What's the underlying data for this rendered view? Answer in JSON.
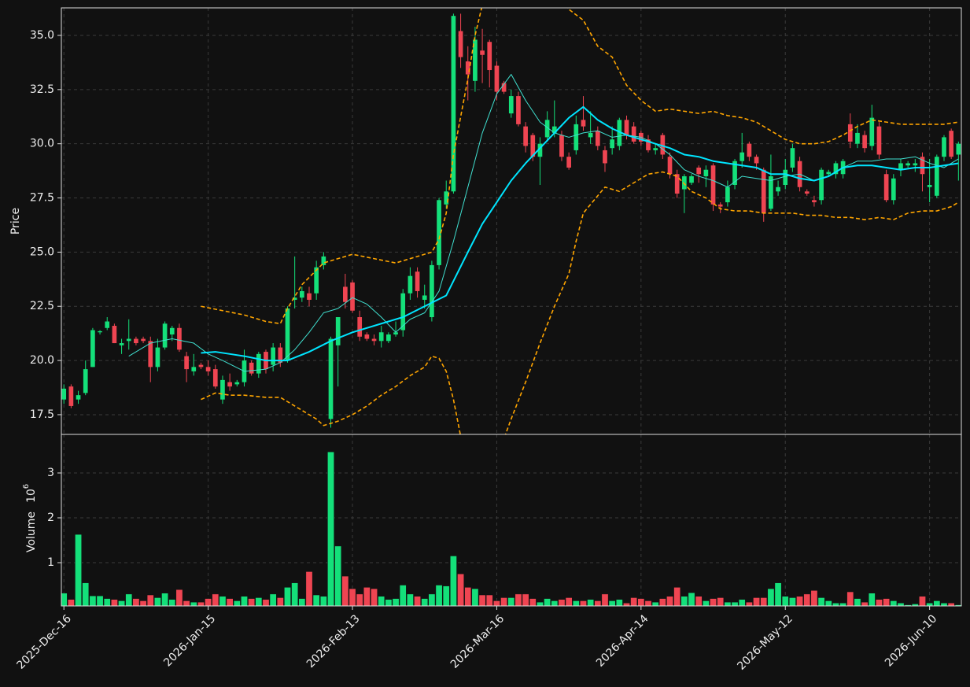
{
  "chart_data": {
    "type": "candlestick",
    "ylabel": "Price",
    "volume_label": "Volume",
    "volume_scale": {
      "base": "10",
      "exponent": "6"
    },
    "up_color": "#14e07a",
    "down_color": "#ef4552",
    "grid": true,
    "categories": [
      "2025-Dec-16",
      null,
      null,
      null,
      null,
      null,
      null,
      null,
      null,
      null,
      null,
      null,
      null,
      null,
      null,
      null,
      null,
      null,
      null,
      null,
      "2026-Jan-15",
      null,
      null,
      null,
      null,
      null,
      null,
      null,
      null,
      null,
      null,
      null,
      null,
      null,
      null,
      null,
      null,
      null,
      null,
      null,
      "2026-Feb-13",
      null,
      null,
      null,
      null,
      null,
      null,
      null,
      null,
      null,
      null,
      null,
      null,
      null,
      null,
      null,
      null,
      null,
      null,
      null,
      "2026-Mar-16",
      null,
      null,
      null,
      null,
      null,
      null,
      null,
      null,
      null,
      null,
      null,
      null,
      null,
      null,
      null,
      null,
      null,
      null,
      null,
      "2026-Apr-14",
      null,
      null,
      null,
      null,
      null,
      null,
      null,
      null,
      null,
      null,
      null,
      null,
      null,
      null,
      null,
      null,
      null,
      null,
      null,
      "2026-May-12",
      null,
      null,
      null,
      null,
      null,
      null,
      null,
      null,
      null,
      null,
      null,
      null,
      null,
      null,
      null,
      null,
      null,
      null,
      null,
      "2026-Jun-10",
      null,
      null,
      null,
      null
    ],
    "xlim": [
      -0.35,
      124.4
    ],
    "open": [
      18.2,
      18.8,
      18.2,
      18.5,
      19.7,
      21.3,
      21.5,
      21.6,
      20.7,
      20.9,
      21.0,
      21.0,
      20.9,
      19.7,
      20.6,
      21.2,
      21.5,
      20.2,
      19.5,
      19.8,
      19.7,
      19.6,
      18.2,
      19.0,
      18.9,
      19.0,
      19.9,
      19.4,
      20.4,
      19.8,
      20.6,
      20.0,
      22.8,
      22.9,
      23.1,
      23.1,
      24.4,
      17.3,
      20.7,
      23.4,
      23.6,
      22.0,
      21.2,
      21.0,
      20.9,
      20.9,
      21.2,
      21.4,
      23.1,
      24.1,
      22.8,
      22.0,
      24.4,
      27.2,
      27.8,
      35.2,
      33.8,
      32.9,
      34.3,
      34.7,
      33.6,
      32.8,
      31.4,
      32.2,
      30.8,
      30.4,
      29.4,
      30.3,
      30.5,
      30.4,
      29.4,
      29.7,
      31.1,
      30.3,
      30.6,
      29.7,
      29.8,
      29.9,
      31.1,
      30.8,
      30.5,
      30.2,
      29.7,
      30.4,
      29.4,
      28.6,
      27.9,
      28.2,
      28.9,
      28.5,
      29.0,
      27.2,
      27.3,
      28.1,
      29.2,
      30.0,
      29.4,
      28.8,
      27.0,
      27.8,
      28.1,
      28.9,
      29.2,
      27.8,
      27.4,
      27.4,
      28.6,
      28.6,
      28.6,
      30.9,
      30.0,
      30.4,
      29.9,
      30.8,
      28.6,
      27.4,
      28.8,
      29.0,
      29.0,
      29.4,
      28.0,
      27.6,
      29.4,
      30.6,
      29.5
    ],
    "high": [
      18.9,
      18.9,
      18.6,
      20.0,
      21.5,
      21.4,
      22.0,
      21.7,
      21.0,
      21.9,
      21.1,
      21.1,
      21.1,
      21.0,
      21.8,
      21.6,
      21.7,
      20.4,
      20.3,
      19.9,
      20.0,
      19.8,
      19.3,
      19.4,
      19.1,
      20.5,
      20.0,
      20.4,
      20.5,
      20.8,
      20.8,
      22.5,
      24.8,
      23.4,
      23.4,
      24.6,
      25.0,
      21.1,
      22.0,
      24.0,
      23.7,
      22.3,
      21.3,
      21.2,
      21.6,
      21.3,
      21.8,
      23.3,
      24.3,
      24.3,
      23.5,
      24.6,
      27.5,
      28.3,
      36.0,
      36.0,
      34.5,
      35.4,
      35.3,
      34.8,
      33.8,
      32.9,
      32.5,
      32.4,
      31.0,
      30.5,
      30.3,
      31.5,
      32.0,
      30.6,
      29.6,
      31.3,
      32.2,
      31.5,
      30.8,
      29.9,
      30.8,
      31.2,
      31.3,
      31.0,
      30.6,
      30.4,
      30.0,
      30.5,
      29.6,
      28.8,
      28.6,
      28.6,
      29.0,
      29.0,
      29.1,
      27.3,
      28.3,
      29.3,
      30.5,
      30.1,
      29.5,
      28.9,
      29.5,
      28.3,
      29.3,
      30.0,
      29.4,
      27.9,
      27.6,
      28.9,
      28.8,
      29.2,
      29.3,
      31.4,
      30.9,
      30.6,
      31.8,
      31.0,
      28.8,
      28.6,
      29.3,
      29.2,
      29.3,
      29.6,
      29.3,
      29.5,
      30.4,
      30.7,
      30.1
    ],
    "low": [
      18.0,
      17.8,
      18.0,
      18.4,
      19.7,
      21.2,
      21.4,
      20.8,
      20.3,
      20.5,
      20.7,
      20.8,
      19.0,
      19.5,
      20.5,
      20.9,
      20.4,
      19.0,
      19.3,
      19.6,
      19.3,
      18.7,
      18.0,
      18.6,
      18.8,
      18.8,
      19.3,
      19.2,
      19.4,
      19.5,
      19.7,
      19.9,
      22.4,
      22.7,
      22.5,
      22.8,
      24.2,
      16.9,
      18.8,
      22.4,
      22.2,
      20.9,
      20.9,
      20.7,
      20.6,
      20.8,
      21.1,
      21.1,
      22.8,
      22.9,
      22.4,
      21.8,
      24.2,
      27.0,
      27.7,
      33.5,
      32.0,
      32.4,
      32.8,
      32.6,
      32.0,
      32.3,
      31.2,
      30.8,
      29.6,
      29.2,
      28.1,
      30.1,
      30.3,
      29.2,
      28.8,
      29.5,
      30.6,
      30.0,
      29.7,
      28.7,
      29.5,
      29.7,
      30.2,
      30.0,
      29.9,
      29.6,
      29.5,
      29.3,
      28.4,
      27.5,
      26.8,
      28.1,
      28.2,
      28.0,
      26.9,
      26.8,
      27.1,
      27.9,
      28.9,
      29.2,
      28.8,
      26.4,
      26.9,
      27.6,
      27.9,
      28.7,
      27.8,
      27.6,
      27.1,
      27.2,
      28.5,
      28.4,
      28.4,
      29.8,
      29.8,
      29.6,
      29.7,
      29.3,
      27.3,
      27.2,
      28.5,
      28.9,
      28.7,
      27.8,
      27.3,
      27.5,
      29.2,
      29.3,
      28.3
    ],
    "close": [
      18.7,
      17.9,
      18.4,
      19.6,
      21.4,
      21.35,
      21.8,
      20.8,
      20.8,
      21.0,
      20.8,
      20.9,
      19.7,
      20.6,
      21.7,
      21.5,
      20.5,
      19.6,
      19.7,
      19.7,
      19.5,
      18.8,
      19.1,
      18.8,
      19.0,
      20.0,
      19.4,
      20.3,
      19.6,
      20.6,
      19.9,
      22.4,
      22.9,
      23.2,
      22.8,
      24.3,
      24.8,
      21.0,
      22.0,
      22.7,
      22.3,
      21.1,
      21.0,
      20.9,
      21.3,
      21.2,
      21.3,
      23.1,
      23.9,
      23.2,
      23.0,
      24.4,
      27.4,
      27.8,
      35.9,
      34.0,
      33.2,
      34.8,
      34.1,
      33.4,
      32.4,
      32.4,
      32.2,
      30.9,
      29.9,
      29.4,
      30.0,
      31.1,
      30.8,
      29.4,
      28.9,
      30.9,
      30.8,
      30.5,
      29.9,
      29.1,
      30.2,
      31.1,
      30.4,
      30.1,
      30.1,
      29.7,
      29.8,
      29.5,
      28.6,
      27.7,
      28.5,
      28.5,
      28.6,
      28.8,
      27.2,
      27.1,
      28.0,
      29.2,
      29.6,
      29.4,
      29.1,
      26.8,
      28.5,
      28.0,
      28.8,
      29.8,
      28.0,
      27.7,
      27.3,
      28.8,
      28.7,
      29.1,
      29.2,
      30.1,
      30.5,
      29.8,
      31.2,
      29.5,
      27.4,
      28.4,
      29.1,
      29.1,
      29.1,
      28.6,
      28.1,
      29.4,
      30.3,
      29.4,
      30.0
    ],
    "volume": [
      0.32,
      0.18,
      1.63,
      0.55,
      0.26,
      0.26,
      0.2,
      0.18,
      0.15,
      0.3,
      0.2,
      0.15,
      0.28,
      0.22,
      0.32,
      0.18,
      0.4,
      0.15,
      0.12,
      0.12,
      0.2,
      0.3,
      0.25,
      0.2,
      0.15,
      0.25,
      0.2,
      0.22,
      0.18,
      0.3,
      0.22,
      0.45,
      0.55,
      0.2,
      0.8,
      0.28,
      0.25,
      3.47,
      1.37,
      0.7,
      0.42,
      0.3,
      0.45,
      0.42,
      0.25,
      0.18,
      0.2,
      0.5,
      0.3,
      0.25,
      0.2,
      0.3,
      0.5,
      0.48,
      1.15,
      0.75,
      0.45,
      0.42,
      0.28,
      0.28,
      0.15,
      0.22,
      0.22,
      0.3,
      0.3,
      0.2,
      0.12,
      0.2,
      0.15,
      0.18,
      0.22,
      0.15,
      0.15,
      0.18,
      0.15,
      0.3,
      0.15,
      0.18,
      0.1,
      0.22,
      0.2,
      0.15,
      0.12,
      0.2,
      0.25,
      0.45,
      0.25,
      0.33,
      0.25,
      0.15,
      0.2,
      0.22,
      0.12,
      0.12,
      0.18,
      0.12,
      0.22,
      0.22,
      0.42,
      0.55,
      0.25,
      0.22,
      0.25,
      0.3,
      0.38,
      0.22,
      0.15,
      0.1,
      0.1,
      0.35,
      0.2,
      0.12,
      0.32,
      0.18,
      0.2,
      0.15,
      0.1,
      0.06,
      0.08,
      0.25,
      0.1,
      0.15,
      0.1,
      0.1,
      0.06
    ],
    "ylim": [
      16.59,
      36.27
    ],
    "yticks": [
      17.5,
      {
        "value": 20,
        "label": "20.0"
      },
      22.5,
      {
        "value": 25,
        "label": "25.0"
      },
      27.5,
      {
        "value": 30,
        "label": "30.0"
      },
      32.5,
      {
        "value": 35,
        "label": "35.0"
      }
    ],
    "volume_ylim": [
      0.035,
      3.86
    ],
    "volume_yticks": [
      1,
      2,
      3
    ],
    "overlays": [
      {
        "color": "#40e0d0",
        "width": 1,
        "dashed": false,
        "x": [
          9,
          12,
          15,
          18,
          20,
          22,
          25,
          28,
          30,
          32,
          34,
          36,
          38,
          40,
          42,
          44,
          46,
          48,
          50,
          52,
          54,
          56,
          58,
          60,
          62,
          64,
          66,
          68,
          70,
          72,
          74,
          76,
          78,
          80,
          82,
          84,
          86,
          88,
          90,
          92,
          94,
          96,
          98,
          100,
          102,
          104,
          106,
          108,
          110,
          112,
          114,
          116,
          118,
          120,
          122,
          124
        ],
        "values": [
          20.2,
          20.8,
          21.0,
          20.8,
          20.3,
          20.0,
          19.5,
          19.6,
          19.9,
          20.5,
          21.3,
          22.2,
          22.4,
          22.9,
          22.6,
          22.0,
          21.3,
          21.9,
          22.2,
          23.2,
          25.5,
          28.0,
          30.5,
          32.3,
          33.2,
          32.0,
          31.0,
          30.5,
          30.3,
          30.5,
          30.6,
          30.3,
          30.4,
          30.3,
          30.0,
          29.5,
          28.8,
          28.5,
          28.3,
          28.0,
          28.5,
          28.4,
          28.3,
          28.5,
          28.6,
          28.3,
          28.5,
          28.9,
          29.2,
          29.2,
          29.3,
          29.3,
          29.4,
          29.1,
          28.9,
          29.3
        ]
      },
      {
        "color": "#00e5ff",
        "width": 2,
        "dashed": false,
        "x": [
          19,
          21,
          23,
          25,
          28,
          31,
          34,
          37,
          40,
          44,
          47,
          50,
          53,
          56,
          58,
          60,
          62,
          64,
          66,
          68,
          70,
          72,
          74,
          76,
          78,
          80,
          82,
          84,
          86,
          88,
          90,
          92,
          94,
          96,
          98,
          100,
          102,
          104,
          106,
          108,
          110,
          112,
          114,
          116,
          118,
          120,
          122,
          124
        ],
        "values": [
          20.35,
          20.4,
          20.3,
          20.2,
          20.0,
          20.0,
          20.4,
          20.9,
          21.3,
          21.7,
          22.0,
          22.5,
          23.0,
          25.0,
          26.3,
          27.3,
          28.3,
          29.1,
          29.8,
          30.5,
          31.2,
          31.7,
          31.1,
          30.7,
          30.4,
          30.2,
          30.0,
          29.8,
          29.5,
          29.4,
          29.2,
          29.1,
          29.0,
          28.9,
          28.6,
          28.6,
          28.4,
          28.3,
          28.5,
          28.9,
          29.0,
          29.0,
          28.9,
          28.8,
          28.9,
          28.9,
          29.0,
          29.1
        ]
      },
      {
        "color": "#ffa500",
        "width": 1.6,
        "dashed": true,
        "x": [
          19,
          22,
          25,
          28,
          30,
          31,
          33,
          36,
          38,
          40,
          43,
          46,
          49,
          51,
          52,
          53,
          54,
          56,
          57,
          58,
          59,
          60,
          63,
          66,
          68,
          70,
          72,
          74,
          76,
          78,
          80,
          82,
          84,
          86,
          88,
          90,
          92,
          94,
          96,
          98,
          100,
          102,
          104,
          106,
          108,
          110,
          112,
          114,
          116,
          118,
          120,
          122,
          124
        ],
        "values": [
          22.5,
          22.3,
          22.1,
          21.8,
          21.7,
          22.4,
          23.5,
          24.5,
          24.7,
          24.9,
          24.7,
          24.5,
          24.8,
          25.0,
          25.6,
          26.8,
          29.5,
          33.0,
          35.0,
          36.4,
          37.5,
          38.5,
          39.0,
          38.0,
          37.0,
          36.2,
          35.7,
          34.5,
          34.0,
          32.7,
          32.0,
          31.5,
          31.6,
          31.5,
          31.4,
          31.5,
          31.3,
          31.2,
          31.0,
          30.6,
          30.2,
          30.0,
          30.0,
          30.1,
          30.4,
          30.8,
          31.1,
          31.0,
          30.9,
          30.9,
          30.9,
          30.9,
          31.0
        ]
      },
      {
        "color": "#ffa500",
        "width": 1.6,
        "dashed": true,
        "x": [
          19,
          21,
          23,
          25,
          28,
          30,
          32,
          35,
          36,
          38,
          40,
          42,
          44,
          46,
          48,
          50,
          51,
          52,
          53,
          54,
          55,
          57,
          60,
          62,
          64,
          66,
          68,
          70,
          71,
          72,
          74,
          75,
          77,
          79,
          81,
          83,
          85,
          87,
          89,
          91,
          93,
          95,
          97,
          99,
          101,
          103,
          105,
          107,
          109,
          111,
          113,
          115,
          117,
          119,
          121,
          123,
          124
        ],
        "values": [
          18.2,
          18.5,
          18.4,
          18.4,
          18.3,
          18.3,
          17.9,
          17.3,
          17.0,
          17.2,
          17.5,
          17.9,
          18.4,
          18.8,
          19.3,
          19.7,
          20.2,
          20.1,
          19.5,
          18.2,
          16.5,
          15.0,
          15.5,
          17.3,
          19.0,
          20.8,
          22.5,
          24.0,
          25.5,
          26.8,
          27.6,
          28.0,
          27.8,
          28.2,
          28.6,
          28.7,
          28.5,
          27.8,
          27.5,
          27.0,
          26.9,
          26.9,
          26.8,
          26.8,
          26.8,
          26.7,
          26.7,
          26.6,
          26.6,
          26.5,
          26.6,
          26.5,
          26.8,
          26.9,
          26.9,
          27.1,
          27.3
        ]
      }
    ]
  }
}
